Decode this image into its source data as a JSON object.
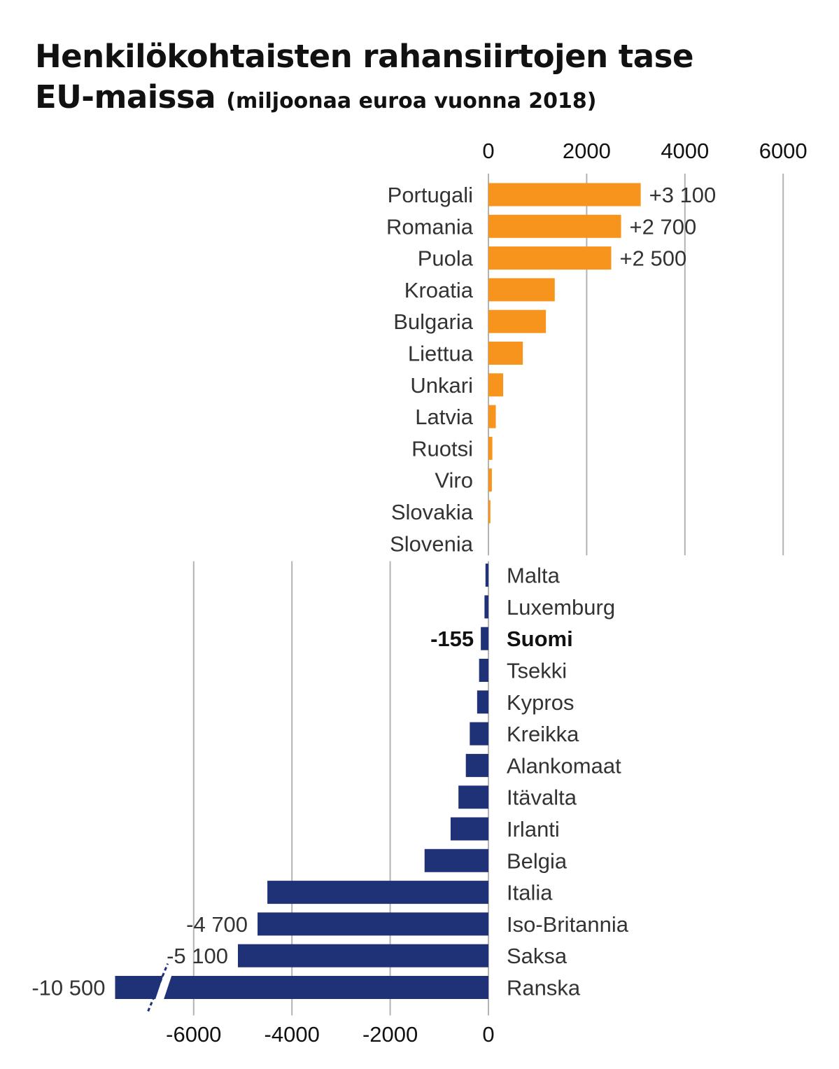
{
  "title": {
    "line1": "Henkilökohtaisten rahansiirtojen tase",
    "line2": "EU-maissa",
    "subtitle": "(miljoonaa euroa vuonna 2018)"
  },
  "colors": {
    "positive": "#F7941D",
    "negative": "#1F3278",
    "grid": "#b3b3b3",
    "break_mark": "#ffffff"
  },
  "chart_data": {
    "type": "bar",
    "orientation": "horizontal",
    "unit": "miljoonaa euroa",
    "grid": true,
    "axes": {
      "top": {
        "ticks": [
          0,
          2000,
          4000,
          6000
        ],
        "tick_labels": [
          "0",
          "2000",
          "4000",
          "6000"
        ]
      },
      "bottom": {
        "ticks": [
          -6000,
          -4000,
          -2000,
          0
        ],
        "tick_labels": [
          "-6000",
          "-4000",
          "-2000",
          "0"
        ]
      }
    },
    "categories": [
      "Portugali",
      "Romania",
      "Puola",
      "Kroatia",
      "Bulgaria",
      "Liettua",
      "Unkari",
      "Latvia",
      "Ruotsi",
      "Viro",
      "Slovakia",
      "Slovenia",
      "Malta",
      "Luxemburg",
      "Suomi",
      "Tsekki",
      "Kypros",
      "Kreikka",
      "Alankomaat",
      "Itävalta",
      "Irlanti",
      "Belgia",
      "Italia",
      "Iso-Britannia",
      "Saksa",
      "Ranska"
    ],
    "values": [
      3100,
      2700,
      2500,
      1350,
      1170,
      700,
      300,
      150,
      80,
      70,
      40,
      0,
      -60,
      -80,
      -155,
      -190,
      -230,
      -380,
      -460,
      -610,
      -770,
      -1300,
      -4500,
      -4700,
      -5100,
      -10500
    ],
    "data_labels": {
      "Portugali": "+3 100",
      "Romania": "+2 700",
      "Puola": "+2 500",
      "Suomi": "-155",
      "Iso-Britannia": "-4 700",
      "Saksa": "-5 100",
      "Ranska": "-10 500"
    },
    "highlight": "Suomi",
    "axis_break": {
      "category": "Ranska"
    }
  }
}
